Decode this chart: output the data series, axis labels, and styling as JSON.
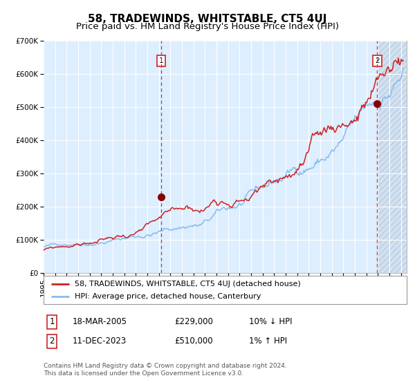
{
  "title": "58, TRADEWINDS, WHITSTABLE, CT5 4UJ",
  "subtitle": "Price paid vs. HM Land Registry's House Price Index (HPI)",
  "ylim": [
    0,
    700000
  ],
  "yticks": [
    0,
    100000,
    200000,
    300000,
    400000,
    500000,
    600000,
    700000
  ],
  "ytick_labels": [
    "£0",
    "£100K",
    "£200K",
    "£300K",
    "£400K",
    "£500K",
    "£600K",
    "£700K"
  ],
  "background_color": "#ffffff",
  "plot_bg_color": "#ddeeff",
  "grid_color": "#ffffff",
  "hpi_line_color": "#88bbee",
  "price_line_color": "#cc2222",
  "purchase1_date": 2005.21,
  "purchase1_price": 229000,
  "purchase2_date": 2023.94,
  "purchase2_price": 510000,
  "vline_color": "#cc3333",
  "marker_color": "#880000",
  "legend_label1": "58, TRADEWINDS, WHITSTABLE, CT5 4UJ (detached house)",
  "legend_label2": "HPI: Average price, detached house, Canterbury",
  "table_row1": [
    "1",
    "18-MAR-2005",
    "£229,000",
    "10% ↓ HPI"
  ],
  "table_row2": [
    "2",
    "11-DEC-2023",
    "£510,000",
    "1% ↑ HPI"
  ],
  "footer": "Contains HM Land Registry data © Crown copyright and database right 2024.\nThis data is licensed under the Open Government Licence v3.0.",
  "title_fontsize": 11,
  "subtitle_fontsize": 9.5,
  "tick_fontsize": 7.5,
  "legend_fontsize": 8.0,
  "table_fontsize": 8.5,
  "footer_fontsize": 6.5
}
